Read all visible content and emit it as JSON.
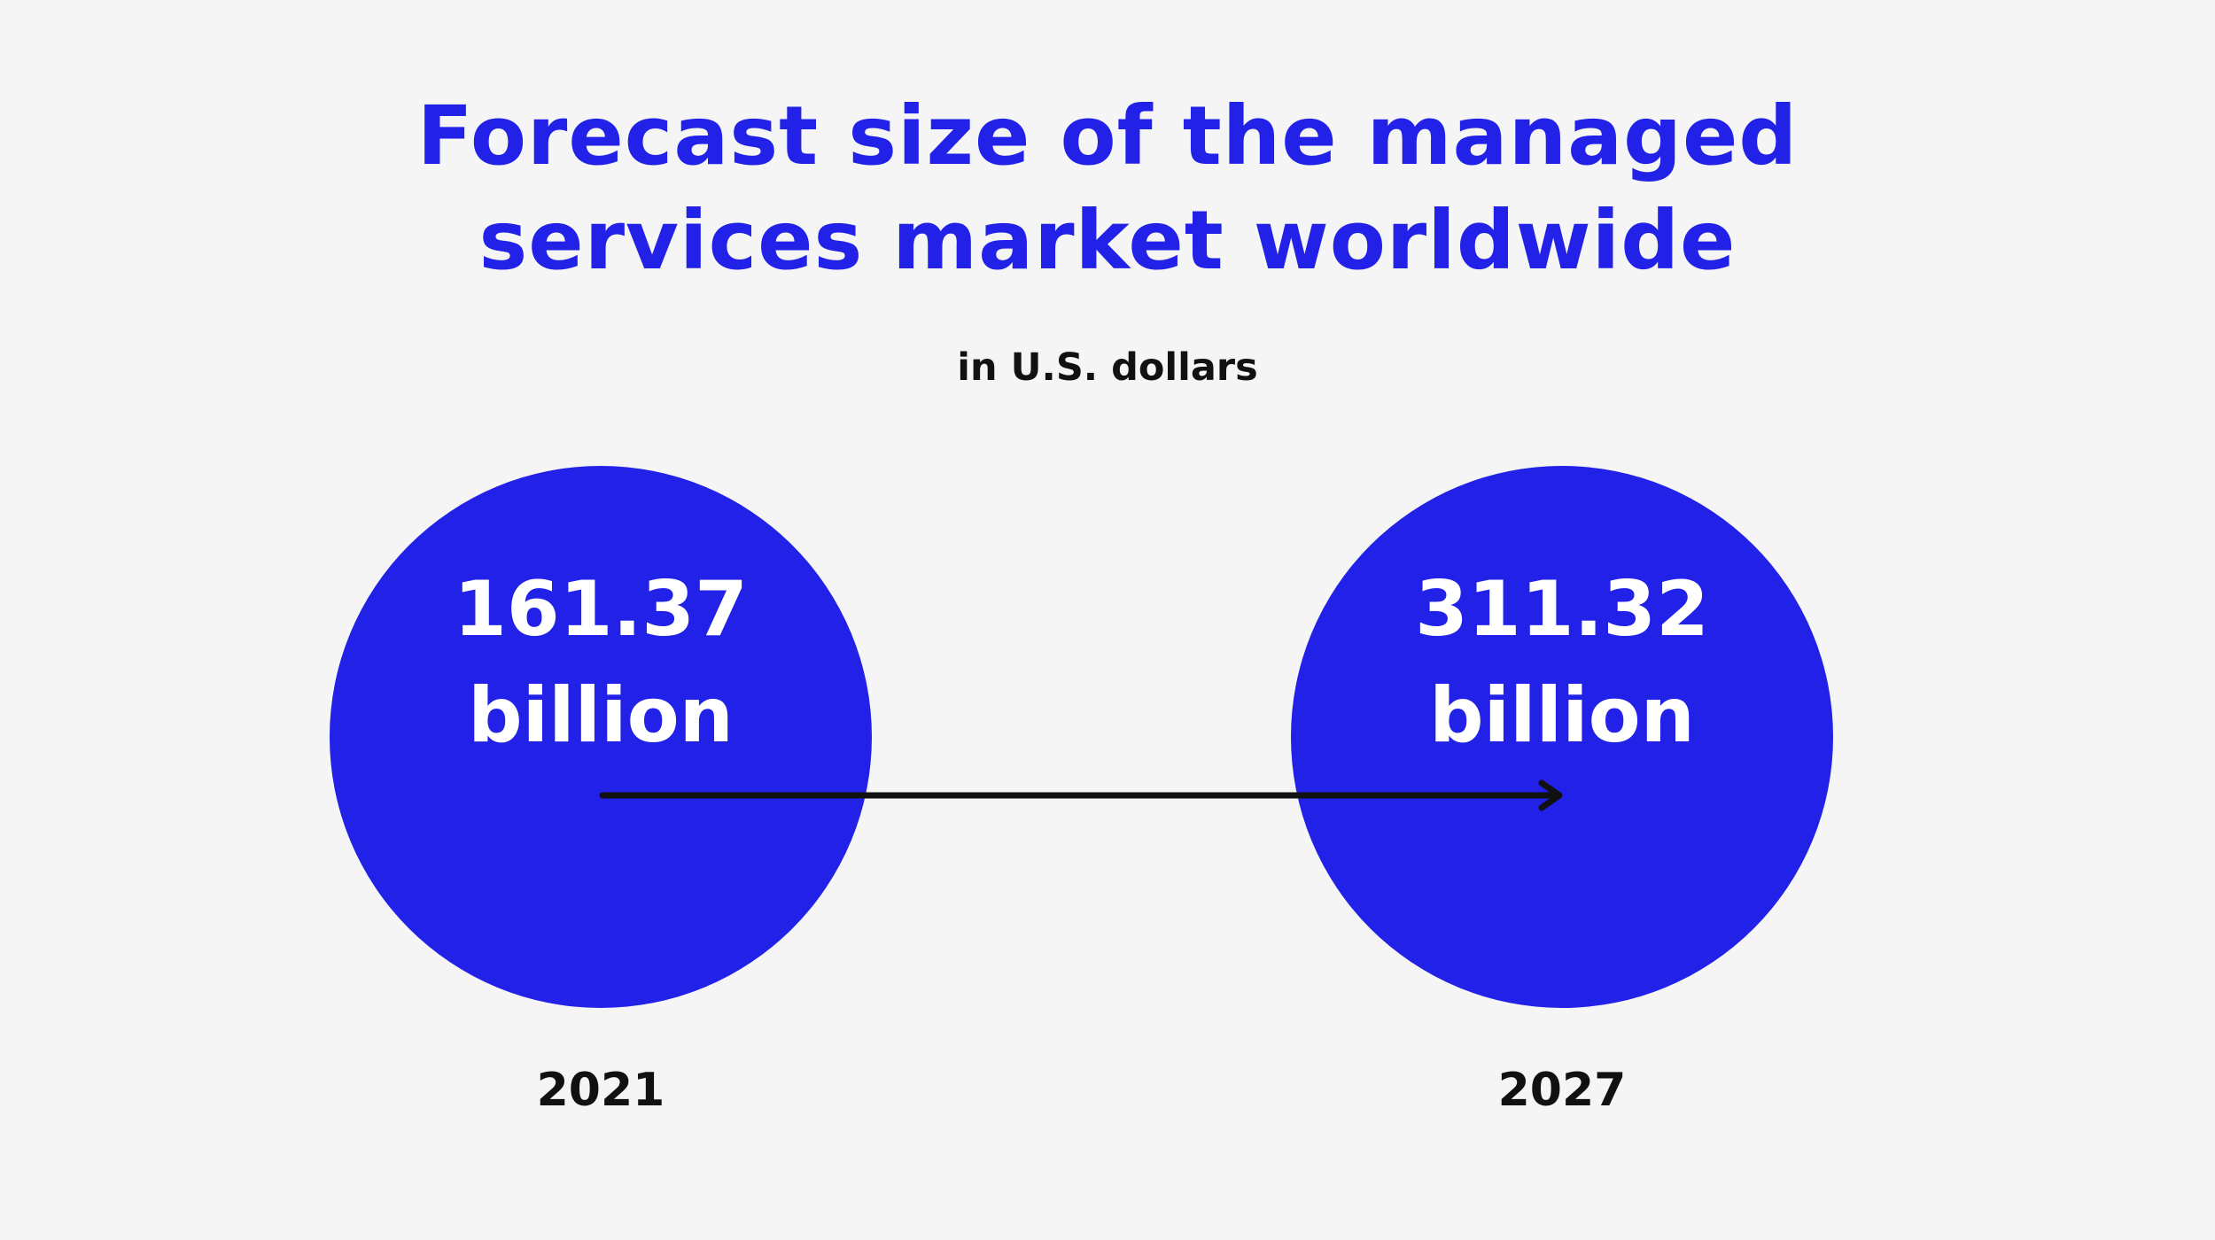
{
  "chart_data": {
    "type": "bubble",
    "title": "Forecast size of the managed services market worldwide",
    "title_lines": [
      "Forecast size of the managed",
      "services market worldwide"
    ],
    "subtitle": "in U.S. dollars",
    "unit": "billion",
    "categories": [
      "2021",
      "2027"
    ],
    "values": [
      161.37,
      311.32
    ],
    "value_labels": [
      "161.37",
      "311.32"
    ],
    "arrow": "2021 -> 2027",
    "grid": false,
    "legend": "none"
  },
  "colors": {
    "accent": "#2121e8",
    "background": "#f5f5f5",
    "text": "#111111",
    "label_on_circle": "#ffffff"
  }
}
